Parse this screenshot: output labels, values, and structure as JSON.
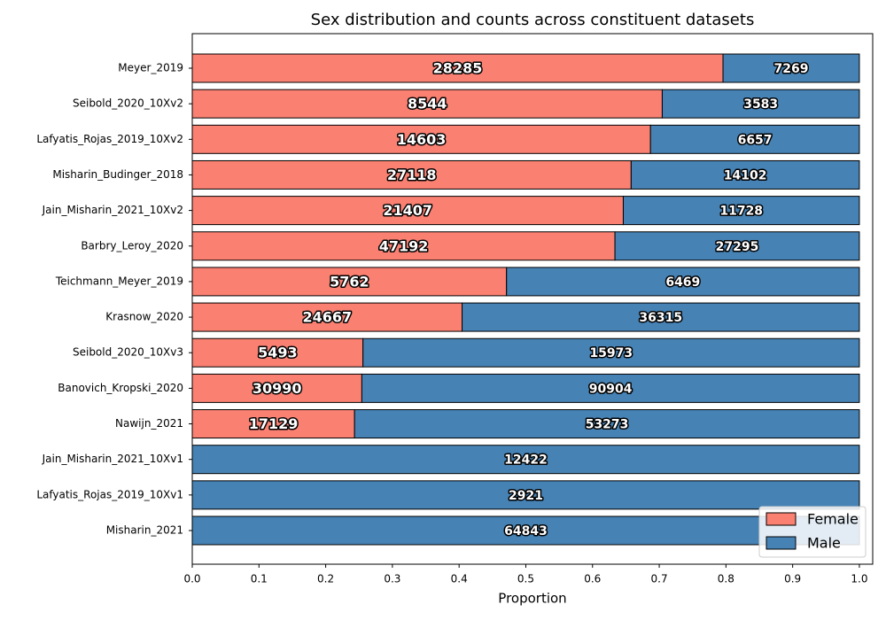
{
  "chart_data": {
    "type": "stacked_barh",
    "title": "Sex distribution and counts across constituent datasets",
    "xlabel": "Proportion",
    "categories": [
      "Meyer_2019",
      "Seibold_2020_10Xv2",
      "Lafyatis_Rojas_2019_10Xv2",
      "Misharin_Budinger_2018",
      "Jain_Misharin_2021_10Xv2",
      "Barbry_Leroy_2020",
      "Teichmann_Meyer_2019",
      "Krasnow_2020",
      "Seibold_2020_10Xv3",
      "Banovich_Kropski_2020",
      "Nawijn_2021",
      "Jain_Misharin_2021_10Xv1",
      "Lafyatis_Rojas_2019_10Xv1",
      "Misharin_2021"
    ],
    "series": [
      {
        "name": "Female",
        "color": "#fa8072",
        "values": [
          0.7956,
          0.7045,
          0.6869,
          0.6579,
          0.6461,
          0.6336,
          0.4711,
          0.4045,
          0.2559,
          0.2542,
          0.2433,
          0,
          0,
          0
        ],
        "counts": [
          28285,
          8544,
          14603,
          27118,
          21407,
          47192,
          5762,
          24667,
          5493,
          30990,
          17129,
          null,
          null,
          null
        ]
      },
      {
        "name": "Male",
        "color": "#4682b4",
        "values": [
          0.2044,
          0.2955,
          0.3131,
          0.3421,
          0.3539,
          0.3664,
          0.5289,
          0.5955,
          0.7441,
          0.7458,
          0.7567,
          1,
          1,
          1
        ],
        "counts": [
          7269,
          3583,
          6657,
          14102,
          11728,
          27295,
          6469,
          36315,
          15973,
          90904,
          53273,
          12422,
          2921,
          64843
        ]
      }
    ],
    "xlim": [
      0,
      1.02
    ],
    "xticks": [
      {
        "value": 0,
        "label": "0.0"
      },
      0.1,
      0.2,
      0.3,
      0.4,
      0.5,
      0.6,
      0.7,
      0.8,
      0.9,
      {
        "value": 1,
        "label": "1.0"
      }
    ],
    "legend": "lower right"
  }
}
